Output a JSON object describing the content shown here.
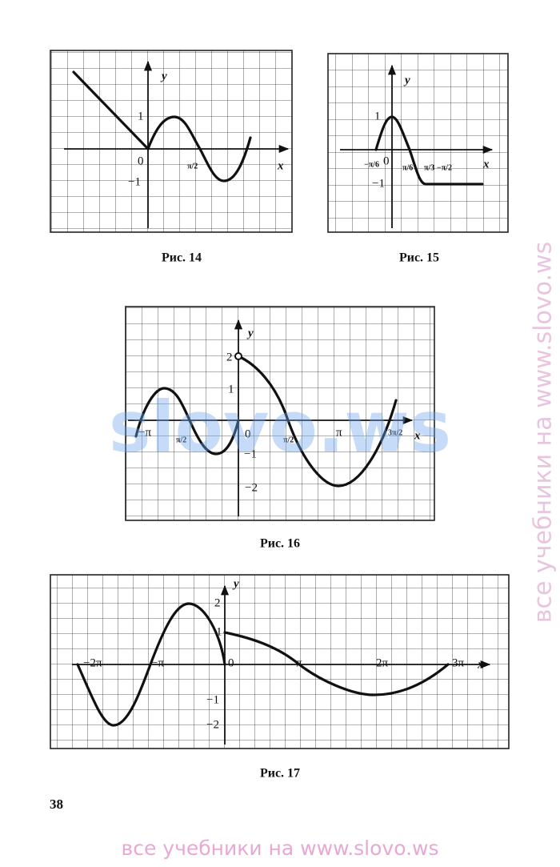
{
  "figures": [
    {
      "caption": "Рис. 14",
      "axis_labels": {
        "x": "x",
        "y": "y"
      },
      "tick_labels": [
        "0",
        "1",
        "−1",
        "π/2"
      ]
    },
    {
      "caption": "Рис. 15",
      "axis_labels": {
        "x": "x",
        "y": "y"
      },
      "tick_labels": [
        "−π/6",
        "0",
        "π/6",
        "π/3",
        "−π/2",
        "1",
        "−1"
      ]
    },
    {
      "caption": "Рис. 16",
      "axis_labels": {
        "x": "x",
        "y": "y"
      },
      "tick_labels": [
        "2",
        "1",
        "0",
        "−1",
        "−2",
        "−π",
        "π/2",
        "π/2",
        "π",
        "3π/2"
      ]
    },
    {
      "caption": "Рис. 17",
      "axis_labels": {
        "x": "x",
        "y": "y"
      },
      "tick_labels": [
        "2",
        "1",
        "0",
        "−1",
        "−2",
        "−2π",
        "−π",
        "π",
        "2π",
        "3π"
      ]
    }
  ],
  "page_number": "38",
  "watermarks": [
    "slovo.ws",
    "все учебники на www.slovo.ws",
    "все учебники на www.slovo.ws"
  ]
}
